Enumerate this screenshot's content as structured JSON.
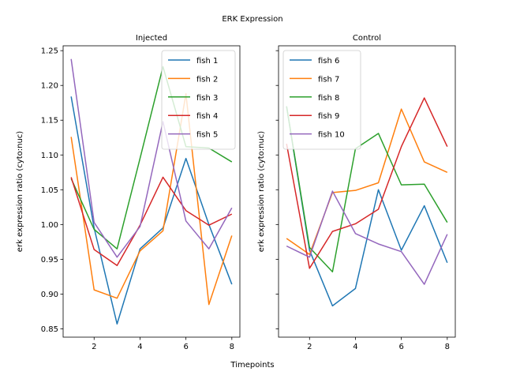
{
  "figure": {
    "suptitle": "ERK Expression",
    "xlabel": "Timepoints"
  },
  "chart_data": [
    {
      "type": "line",
      "title": "Injected",
      "xlabel": "Timepoints",
      "ylabel": "erk expression ratio (cyto:nuc)",
      "x": [
        1,
        2,
        3,
        4,
        5,
        6,
        7,
        8
      ],
      "xlim": [
        0.65,
        8.35
      ],
      "ylim": [
        0.838,
        1.257
      ],
      "xticks": [
        2,
        4,
        6,
        8
      ],
      "yticks": [
        0.85,
        0.9,
        0.95,
        1.0,
        1.05,
        1.1,
        1.15,
        1.2,
        1.25
      ],
      "ytick_labels": [
        "0.85",
        "0.90",
        "0.95",
        "1.00",
        "1.05",
        "1.10",
        "1.15",
        "1.20",
        "1.25"
      ],
      "grid": false,
      "legend": "top-right",
      "series": [
        {
          "name": "fish 1",
          "color": "#1f77b4",
          "values": [
            1.184,
            0.995,
            0.857,
            0.965,
            0.995,
            1.095,
            1.0,
            0.914
          ]
        },
        {
          "name": "fish 2",
          "color": "#ff7f0e",
          "values": [
            1.126,
            0.906,
            0.894,
            0.962,
            0.991,
            1.188,
            0.885,
            0.984
          ]
        },
        {
          "name": "fish 3",
          "color": "#2ca02c",
          "values": [
            1.066,
            0.993,
            0.965,
            1.095,
            1.227,
            1.112,
            1.11,
            1.09
          ]
        },
        {
          "name": "fish 4",
          "color": "#d62728",
          "values": [
            1.068,
            0.964,
            0.941,
            0.999,
            1.068,
            1.02,
            0.999,
            1.015
          ]
        },
        {
          "name": "fish 5",
          "color": "#9467bd",
          "values": [
            1.238,
            1.003,
            0.953,
            0.997,
            1.148,
            1.005,
            0.965,
            1.024
          ]
        }
      ]
    },
    {
      "type": "line",
      "title": "Control",
      "xlabel": "Timepoints",
      "ylabel": "erk expression ratio (cyto:nuc)",
      "x": [
        1,
        2,
        3,
        4,
        5,
        6,
        7,
        8
      ],
      "xlim": [
        0.65,
        8.35
      ],
      "ylim": [
        0.838,
        1.257
      ],
      "xticks": [
        2,
        4,
        6,
        8
      ],
      "yticks": [
        0.85,
        0.9,
        0.95,
        1.0,
        1.05,
        1.1,
        1.15,
        1.2,
        1.25
      ],
      "grid": false,
      "legend": "top-left",
      "series": [
        {
          "name": "fish 6",
          "color": "#1f77b4",
          "values": [
            1.17,
            0.963,
            0.883,
            0.908,
            1.05,
            0.963,
            1.027,
            0.945
          ]
        },
        {
          "name": "fish 7",
          "color": "#ff7f0e",
          "values": [
            0.98,
            0.957,
            1.046,
            1.049,
            1.06,
            1.166,
            1.09,
            1.075
          ]
        },
        {
          "name": "fish 8",
          "color": "#2ca02c",
          "values": [
            1.17,
            0.967,
            0.932,
            1.109,
            1.131,
            1.057,
            1.058,
            1.003
          ]
        },
        {
          "name": "fish 9",
          "color": "#d62728",
          "values": [
            1.116,
            0.937,
            0.99,
            1.001,
            1.022,
            1.112,
            1.182,
            1.112
          ]
        },
        {
          "name": "fish 10",
          "color": "#9467bd",
          "values": [
            0.969,
            0.953,
            1.048,
            0.987,
            0.972,
            0.961,
            0.914,
            0.986
          ]
        }
      ]
    }
  ]
}
